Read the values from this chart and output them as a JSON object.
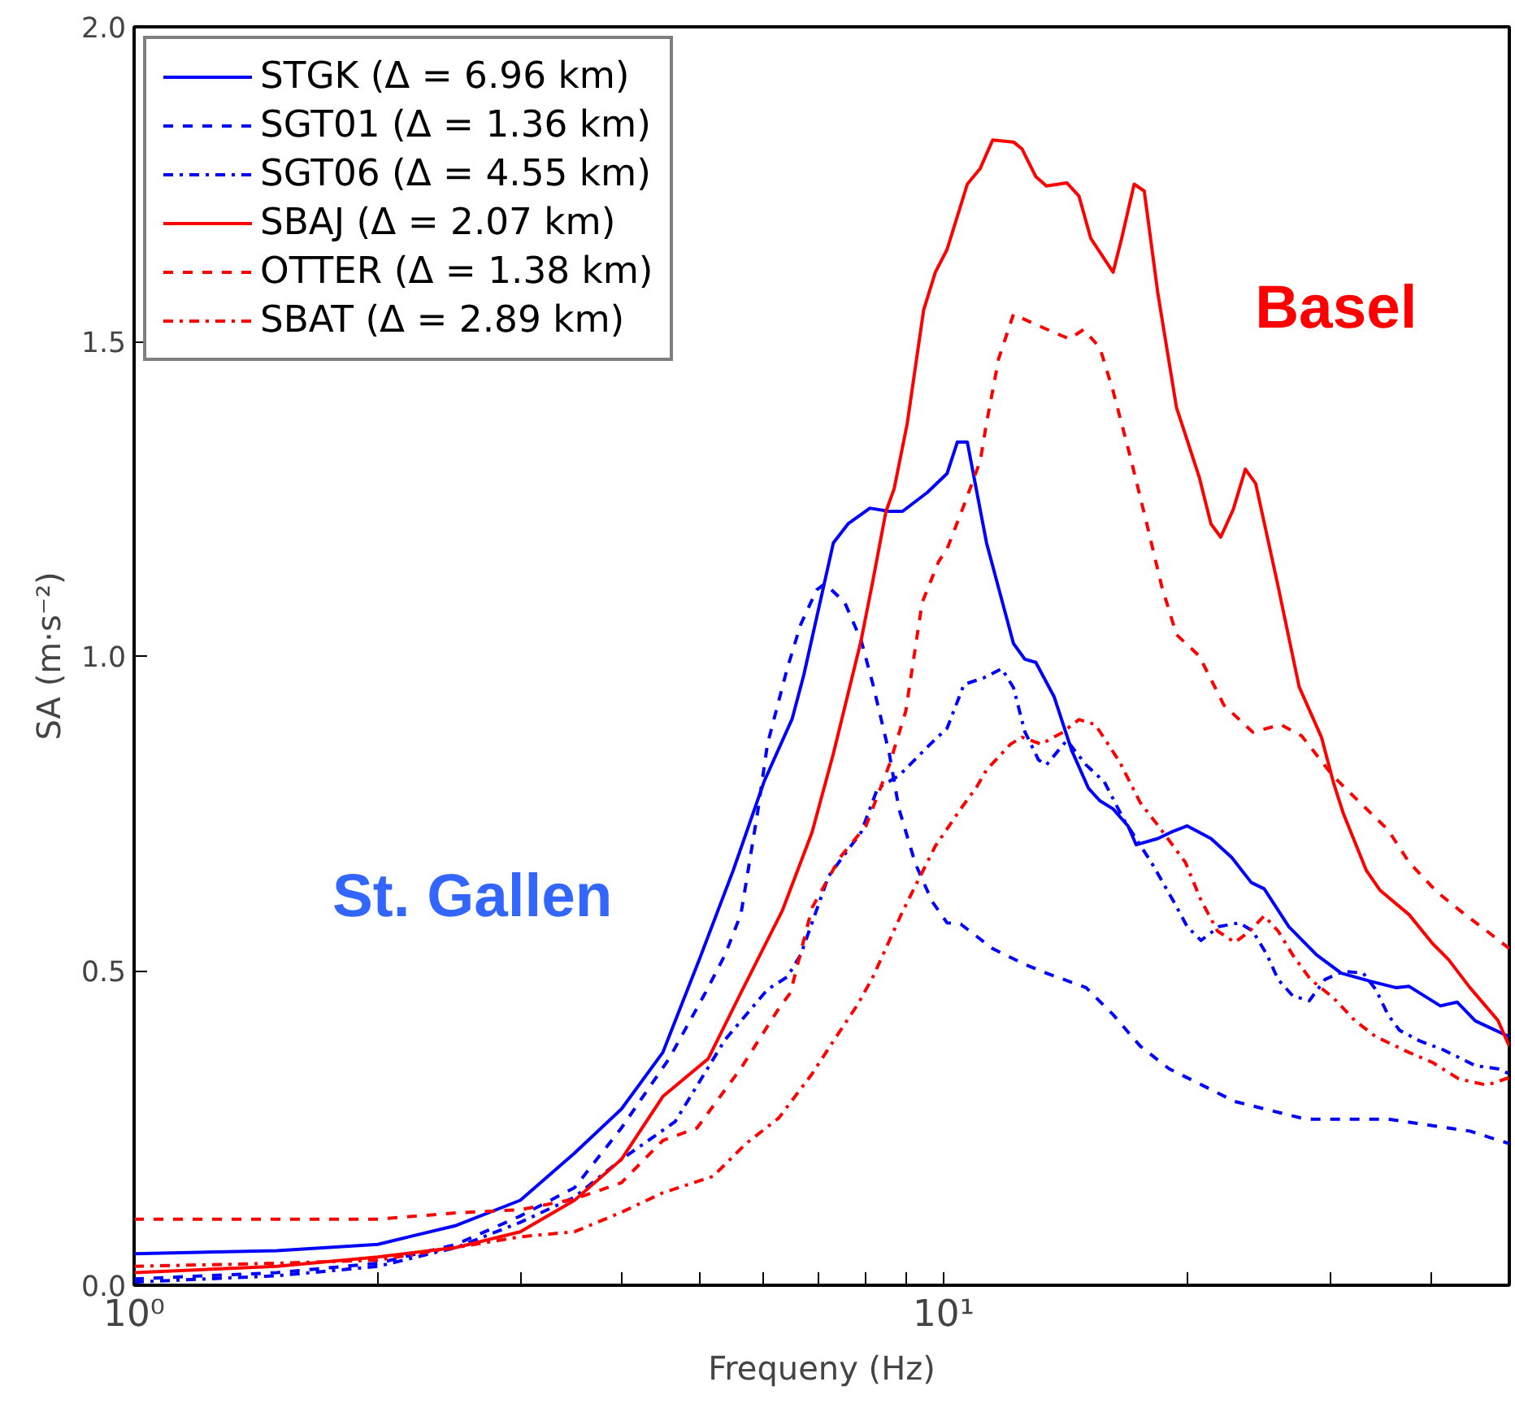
{
  "chart_data": {
    "type": "line",
    "xlabel": "Frequeny (Hz)",
    "ylabel": "SA (m·s⁻²)",
    "log": "x",
    "grid": false,
    "legend": "top left",
    "marker": "none",
    "xlim": [
      1,
      50
    ],
    "ylim": [
      0,
      2.0
    ],
    "xticks": [
      {
        "value": 1,
        "label": "10⁰"
      },
      {
        "value": 2,
        "label": null
      },
      {
        "value": 3,
        "label": null
      },
      {
        "value": 4,
        "label": null
      },
      {
        "value": 5,
        "label": null
      },
      {
        "value": 6,
        "label": null
      },
      {
        "value": 7,
        "label": null
      },
      {
        "value": 8,
        "label": null
      },
      {
        "value": 9,
        "label": null
      },
      {
        "value": 10,
        "label": "10¹"
      },
      {
        "value": 20,
        "label": null
      },
      {
        "value": 30,
        "label": null
      },
      {
        "value": 40,
        "label": null
      }
    ],
    "yticks": [
      {
        "value": 0,
        "label": "0.0"
      },
      {
        "value": 0.5,
        "label": "0.5"
      },
      {
        "value": 1.0,
        "label": "1.0"
      },
      {
        "value": 1.5,
        "label": "1.5"
      },
      {
        "value": 2.0,
        "label": "2.0"
      }
    ],
    "annotations": [
      "St. Gallen",
      "Basel"
    ],
    "series": [
      {
        "name": "STGK (Δ = 6.96 km)",
        "color": "#0000ff",
        "line_style": "solid",
        "x": [
          1,
          1.5,
          2,
          2.5,
          3,
          3.5,
          4,
          4.5,
          5,
          5.5,
          6,
          6.5,
          6.72,
          7.31,
          7.62,
          8.11,
          8.57,
          8.9,
          9.55,
          10.1,
          10.4,
          10.7,
          11.3,
          12.2,
          12.6,
          13.0,
          13.7,
          14.4,
          15.1,
          15.6,
          16.2,
          16.9,
          17.3,
          18.4,
          19.1,
          20.0,
          21.4,
          22.7,
          24.0,
          24.9,
          26.7,
          28.9,
          31.0,
          33.7,
          36.2,
          37.6,
          41.1,
          43.1,
          45.4,
          50
        ],
        "values": [
          0.05,
          0.055,
          0.065,
          0.095,
          0.135,
          0.21,
          0.28,
          0.37,
          0.52,
          0.66,
          0.8,
          0.9,
          0.97,
          1.18,
          1.21,
          1.235,
          1.23,
          1.23,
          1.26,
          1.29,
          1.34,
          1.34,
          1.18,
          1.02,
          0.995,
          0.99,
          0.935,
          0.85,
          0.79,
          0.77,
          0.757,
          0.73,
          0.7,
          0.71,
          0.72,
          0.73,
          0.71,
          0.68,
          0.64,
          0.63,
          0.57,
          0.525,
          0.496,
          0.483,
          0.473,
          0.475,
          0.444,
          0.45,
          0.42,
          0.395
        ]
      },
      {
        "name": "SGT01 (Δ = 1.36 km)",
        "color": "#0000ff",
        "line_style": "dashed",
        "x": [
          1,
          1.5,
          2,
          2.5,
          3,
          3.5,
          4,
          4.58,
          5.08,
          5.37,
          5.62,
          5.89,
          6.06,
          6.41,
          6.66,
          6.97,
          7.14,
          7.55,
          7.91,
          8.18,
          8.57,
          8.81,
          9.23,
          9.68,
          10.1,
          10.5,
          11.5,
          12.6,
          13.4,
          15.0,
          16.2,
          17.5,
          19.0,
          20.5,
          22.9,
          28.0,
          35.4,
          44.7,
          50
        ],
        "values": [
          0.01,
          0.02,
          0.035,
          0.065,
          0.11,
          0.155,
          0.25,
          0.36,
          0.465,
          0.525,
          0.59,
          0.75,
          0.86,
          0.98,
          1.05,
          1.105,
          1.115,
          1.085,
          1.025,
          0.955,
          0.845,
          0.757,
          0.67,
          0.61,
          0.576,
          0.574,
          0.535,
          0.51,
          0.496,
          0.473,
          0.43,
          0.38,
          0.344,
          0.323,
          0.292,
          0.264,
          0.264,
          0.245,
          0.225
        ]
      },
      {
        "name": "SGT06 (Δ = 4.55 km)",
        "color": "#0000ff",
        "line_style": "dashdot",
        "x": [
          1,
          1.5,
          2,
          2.5,
          3,
          3.5,
          4,
          4.66,
          5.37,
          6.06,
          6.41,
          6.66,
          7.21,
          7.91,
          8.29,
          8.81,
          9.63,
          10.1,
          10.6,
          11.2,
          11.8,
          12.2,
          12.6,
          13.1,
          13.4,
          14.2,
          15.0,
          15.8,
          16.7,
          18.1,
          19.3,
          20.0,
          20.8,
          21.9,
          23.2,
          24.1,
          25.1,
          25.9,
          27.0,
          28.3,
          29.6,
          31.2,
          33.0,
          34.2,
          35.4,
          36.6,
          38.8,
          41.3,
          45.4,
          48.4,
          50
        ],
        "values": [
          0.005,
          0.015,
          0.03,
          0.06,
          0.1,
          0.14,
          0.2,
          0.26,
          0.39,
          0.47,
          0.49,
          0.525,
          0.65,
          0.72,
          0.79,
          0.81,
          0.86,
          0.885,
          0.955,
          0.965,
          0.98,
          0.95,
          0.88,
          0.835,
          0.827,
          0.866,
          0.827,
          0.8,
          0.74,
          0.67,
          0.607,
          0.57,
          0.548,
          0.57,
          0.576,
          0.563,
          0.525,
          0.486,
          0.46,
          0.452,
          0.486,
          0.499,
          0.496,
          0.47,
          0.43,
          0.405,
          0.388,
          0.375,
          0.349,
          0.344,
          0.336
        ]
      },
      {
        "name": "SBAJ (Δ = 2.07 km)",
        "color": "#ff0000",
        "line_style": "solid",
        "x": [
          1,
          1.5,
          2,
          2.5,
          3,
          3.5,
          4,
          4.5,
          5.12,
          5.62,
          6.32,
          6.88,
          7.31,
          7.91,
          8.18,
          8.49,
          8.69,
          9.02,
          9.45,
          9.77,
          10.1,
          10.7,
          11.1,
          11.5,
          12.2,
          12.5,
          13.0,
          13.4,
          14.2,
          14.7,
          15.2,
          16.2,
          16.6,
          17.2,
          17.7,
          18.4,
          19.4,
          20.7,
          21.4,
          22.0,
          22.8,
          23.6,
          24.3,
          25.9,
          27.5,
          29.3,
          30.3,
          31.2,
          33.3,
          34.6,
          37.6,
          40.2,
          42.1,
          44.7,
          48.4,
          50
        ],
        "values": [
          0.02,
          0.03,
          0.045,
          0.06,
          0.085,
          0.135,
          0.2,
          0.3,
          0.36,
          0.465,
          0.595,
          0.72,
          0.845,
          1.025,
          1.12,
          1.23,
          1.266,
          1.37,
          1.55,
          1.61,
          1.646,
          1.75,
          1.775,
          1.82,
          1.817,
          1.806,
          1.762,
          1.747,
          1.752,
          1.731,
          1.664,
          1.61,
          1.664,
          1.75,
          1.739,
          1.576,
          1.395,
          1.284,
          1.21,
          1.189,
          1.233,
          1.297,
          1.274,
          1.111,
          0.951,
          0.871,
          0.8,
          0.749,
          0.659,
          0.628,
          0.589,
          0.543,
          0.517,
          0.473,
          0.421,
          0.38
        ]
      },
      {
        "name": "OTTER (Δ = 1.38 km)",
        "color": "#ff0000",
        "line_style": "dashed",
        "x": [
          1,
          1.5,
          2,
          2.5,
          3,
          3.5,
          4,
          4.5,
          4.96,
          5.62,
          6.26,
          6.47,
          6.88,
          7.45,
          8.02,
          8.57,
          8.98,
          9.41,
          9.86,
          10.1,
          10.6,
          11.1,
          11.3,
          11.7,
          12.2,
          13.1,
          14.3,
          14.9,
          15.6,
          16.2,
          17.0,
          17.8,
          18.6,
          19.4,
          20.7,
          22.2,
          24.1,
          26.1,
          27.7,
          30.3,
          32.7,
          35.4,
          37.6,
          40.7,
          44.1,
          46.9,
          50
        ],
        "values": [
          0.105,
          0.105,
          0.105,
          0.115,
          0.12,
          0.137,
          0.163,
          0.23,
          0.25,
          0.345,
          0.44,
          0.465,
          0.6,
          0.68,
          0.73,
          0.827,
          0.912,
          1.085,
          1.15,
          1.17,
          1.24,
          1.31,
          1.37,
          1.473,
          1.543,
          1.525,
          1.504,
          1.519,
          1.49,
          1.421,
          1.318,
          1.214,
          1.111,
          1.034,
          1.0,
          0.922,
          0.879,
          0.891,
          0.873,
          0.809,
          0.767,
          0.724,
          0.672,
          0.625,
          0.589,
          0.563,
          0.535
        ]
      },
      {
        "name": "SBAT (Δ = 2.89 km)",
        "color": "#ff0000",
        "line_style": "dotted",
        "x": [
          1,
          1.5,
          2,
          2.5,
          3,
          3.5,
          4,
          4.5,
          5.19,
          5.7,
          6.26,
          6.88,
          7.31,
          7.84,
          8.18,
          8.9,
          9.77,
          10.5,
          11.0,
          11.3,
          12.1,
          12.5,
          13.2,
          14.0,
          14.7,
          15.4,
          16.5,
          17.5,
          18.4,
          19.9,
          20.8,
          21.8,
          22.9,
          23.8,
          24.9,
          25.9,
          27.0,
          28.4,
          30.3,
          32.2,
          34.2,
          37.6,
          40.2,
          43.3,
          46.9,
          50
        ],
        "values": [
          0.03,
          0.035,
          0.04,
          0.06,
          0.077,
          0.085,
          0.116,
          0.147,
          0.173,
          0.225,
          0.266,
          0.336,
          0.388,
          0.447,
          0.49,
          0.594,
          0.698,
          0.757,
          0.793,
          0.819,
          0.86,
          0.871,
          0.86,
          0.878,
          0.899,
          0.891,
          0.832,
          0.767,
          0.731,
          0.672,
          0.612,
          0.563,
          0.545,
          0.561,
          0.587,
          0.563,
          0.525,
          0.486,
          0.457,
          0.421,
          0.395,
          0.37,
          0.354,
          0.328,
          0.318,
          0.33
        ]
      }
    ]
  }
}
